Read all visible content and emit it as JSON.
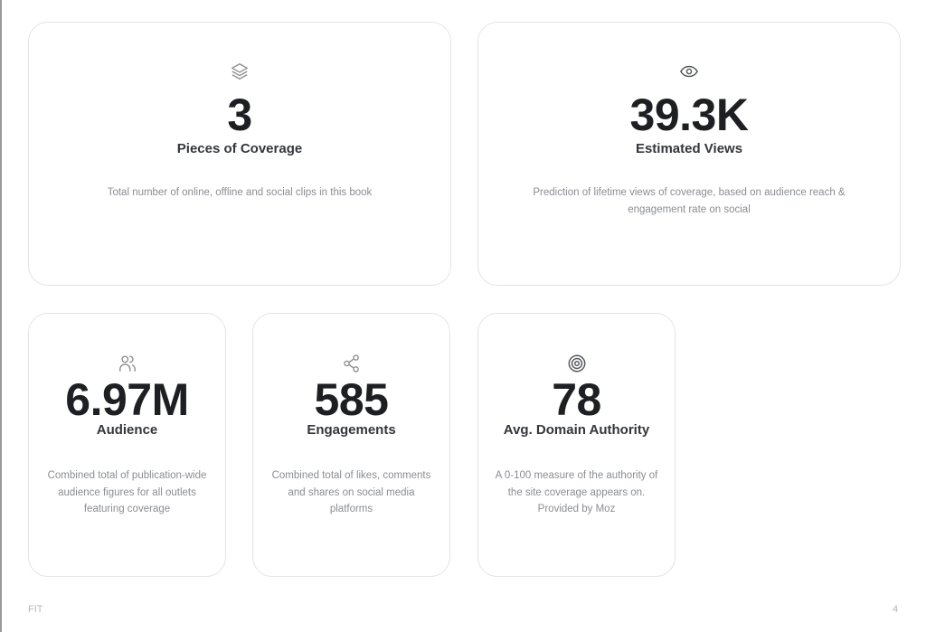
{
  "cards": [
    {
      "icon": "layers-icon",
      "value": "3",
      "title": "Pieces of Coverage",
      "description": "Total number of online, offline and social clips in this book"
    },
    {
      "icon": "eye-icon",
      "value": "39.3K",
      "title": "Estimated Views",
      "description": "Prediction of lifetime views of coverage, based on audience reach & engagement rate on social"
    },
    {
      "icon": "users-icon",
      "value": "6.97M",
      "title": "Audience",
      "description": "Combined total of publication-wide audience figures for all outlets featuring coverage"
    },
    {
      "icon": "share-icon",
      "value": "585",
      "title": "Engagements",
      "description": "Combined total of likes, comments and shares on social media platforms"
    },
    {
      "icon": "target-icon",
      "value": "78",
      "title": "Avg. Domain Authority",
      "description": "A 0-100 measure of the authority of the site coverage appears on. Provided by Moz"
    }
  ],
  "footer": {
    "brand": "FIT",
    "page_number": "4"
  },
  "colors": {
    "icon": "#8a8d92",
    "value": "#1d1f23",
    "border": "#e3e4e6"
  }
}
